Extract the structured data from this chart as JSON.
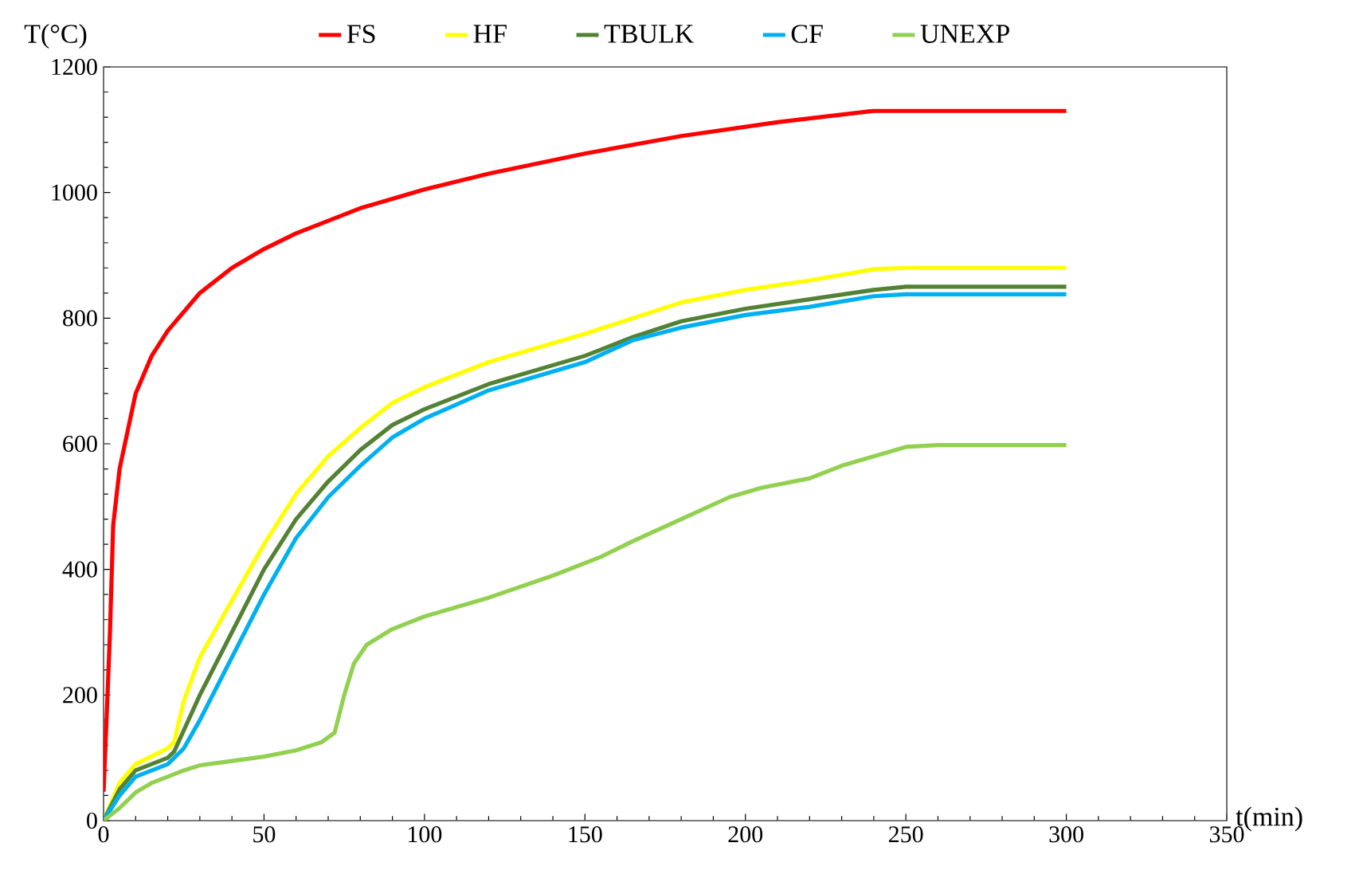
{
  "chart_data": {
    "type": "line",
    "xlabel": "t(min)",
    "ylabel": "T(°C)",
    "xlim": [
      0,
      350
    ],
    "ylim": [
      0,
      1200
    ],
    "xticks": [
      0,
      50,
      100,
      150,
      200,
      250,
      300,
      350
    ],
    "yticks": [
      0,
      200,
      400,
      600,
      800,
      1000,
      1200
    ],
    "grid": false,
    "legend": "top",
    "marker": "none",
    "line_style": "solid",
    "series": [
      {
        "name": "FS",
        "color": "#ff0000",
        "x": [
          0,
          1,
          2,
          3,
          5,
          10,
          15,
          20,
          30,
          40,
          50,
          60,
          80,
          100,
          120,
          150,
          180,
          210,
          240,
          300
        ],
        "values": [
          46,
          170,
          300,
          470,
          560,
          680,
          740,
          780,
          840,
          880,
          910,
          935,
          975,
          1005,
          1030,
          1062,
          1090,
          1112,
          1130,
          1130
        ]
      },
      {
        "name": "HF",
        "color": "#ffff00",
        "x": [
          0,
          5,
          10,
          20,
          22,
          25,
          30,
          40,
          50,
          60,
          70,
          80,
          90,
          100,
          120,
          150,
          180,
          200,
          220,
          240,
          250,
          300
        ],
        "values": [
          0,
          60,
          90,
          115,
          125,
          190,
          260,
          350,
          440,
          520,
          580,
          625,
          665,
          690,
          730,
          775,
          825,
          845,
          860,
          878,
          880,
          880
        ]
      },
      {
        "name": "TBULK",
        "color": "#548235",
        "x": [
          0,
          5,
          10,
          20,
          22,
          30,
          40,
          50,
          60,
          70,
          80,
          90,
          100,
          120,
          150,
          165,
          180,
          200,
          220,
          240,
          250,
          300
        ],
        "values": [
          0,
          50,
          80,
          100,
          110,
          200,
          300,
          400,
          480,
          540,
          590,
          630,
          655,
          695,
          740,
          770,
          795,
          815,
          830,
          845,
          850,
          850
        ]
      },
      {
        "name": "CF",
        "color": "#00b0f0",
        "x": [
          0,
          5,
          10,
          20,
          25,
          30,
          40,
          50,
          60,
          70,
          80,
          90,
          100,
          120,
          150,
          165,
          180,
          200,
          220,
          240,
          250,
          300
        ],
        "values": [
          0,
          40,
          70,
          90,
          115,
          160,
          260,
          360,
          450,
          515,
          565,
          610,
          640,
          685,
          730,
          765,
          785,
          805,
          818,
          835,
          838,
          838
        ]
      },
      {
        "name": "UNEXP",
        "color": "#92d050",
        "x": [
          0,
          5,
          10,
          15,
          20,
          25,
          30,
          40,
          50,
          60,
          68,
          72,
          75,
          78,
          82,
          90,
          100,
          120,
          140,
          155,
          165,
          180,
          195,
          205,
          220,
          230,
          240,
          250,
          260,
          300
        ],
        "values": [
          0,
          20,
          45,
          60,
          70,
          80,
          88,
          95,
          102,
          112,
          125,
          140,
          200,
          250,
          280,
          305,
          325,
          355,
          390,
          420,
          445,
          480,
          515,
          530,
          545,
          565,
          580,
          595,
          598,
          598
        ]
      }
    ]
  }
}
